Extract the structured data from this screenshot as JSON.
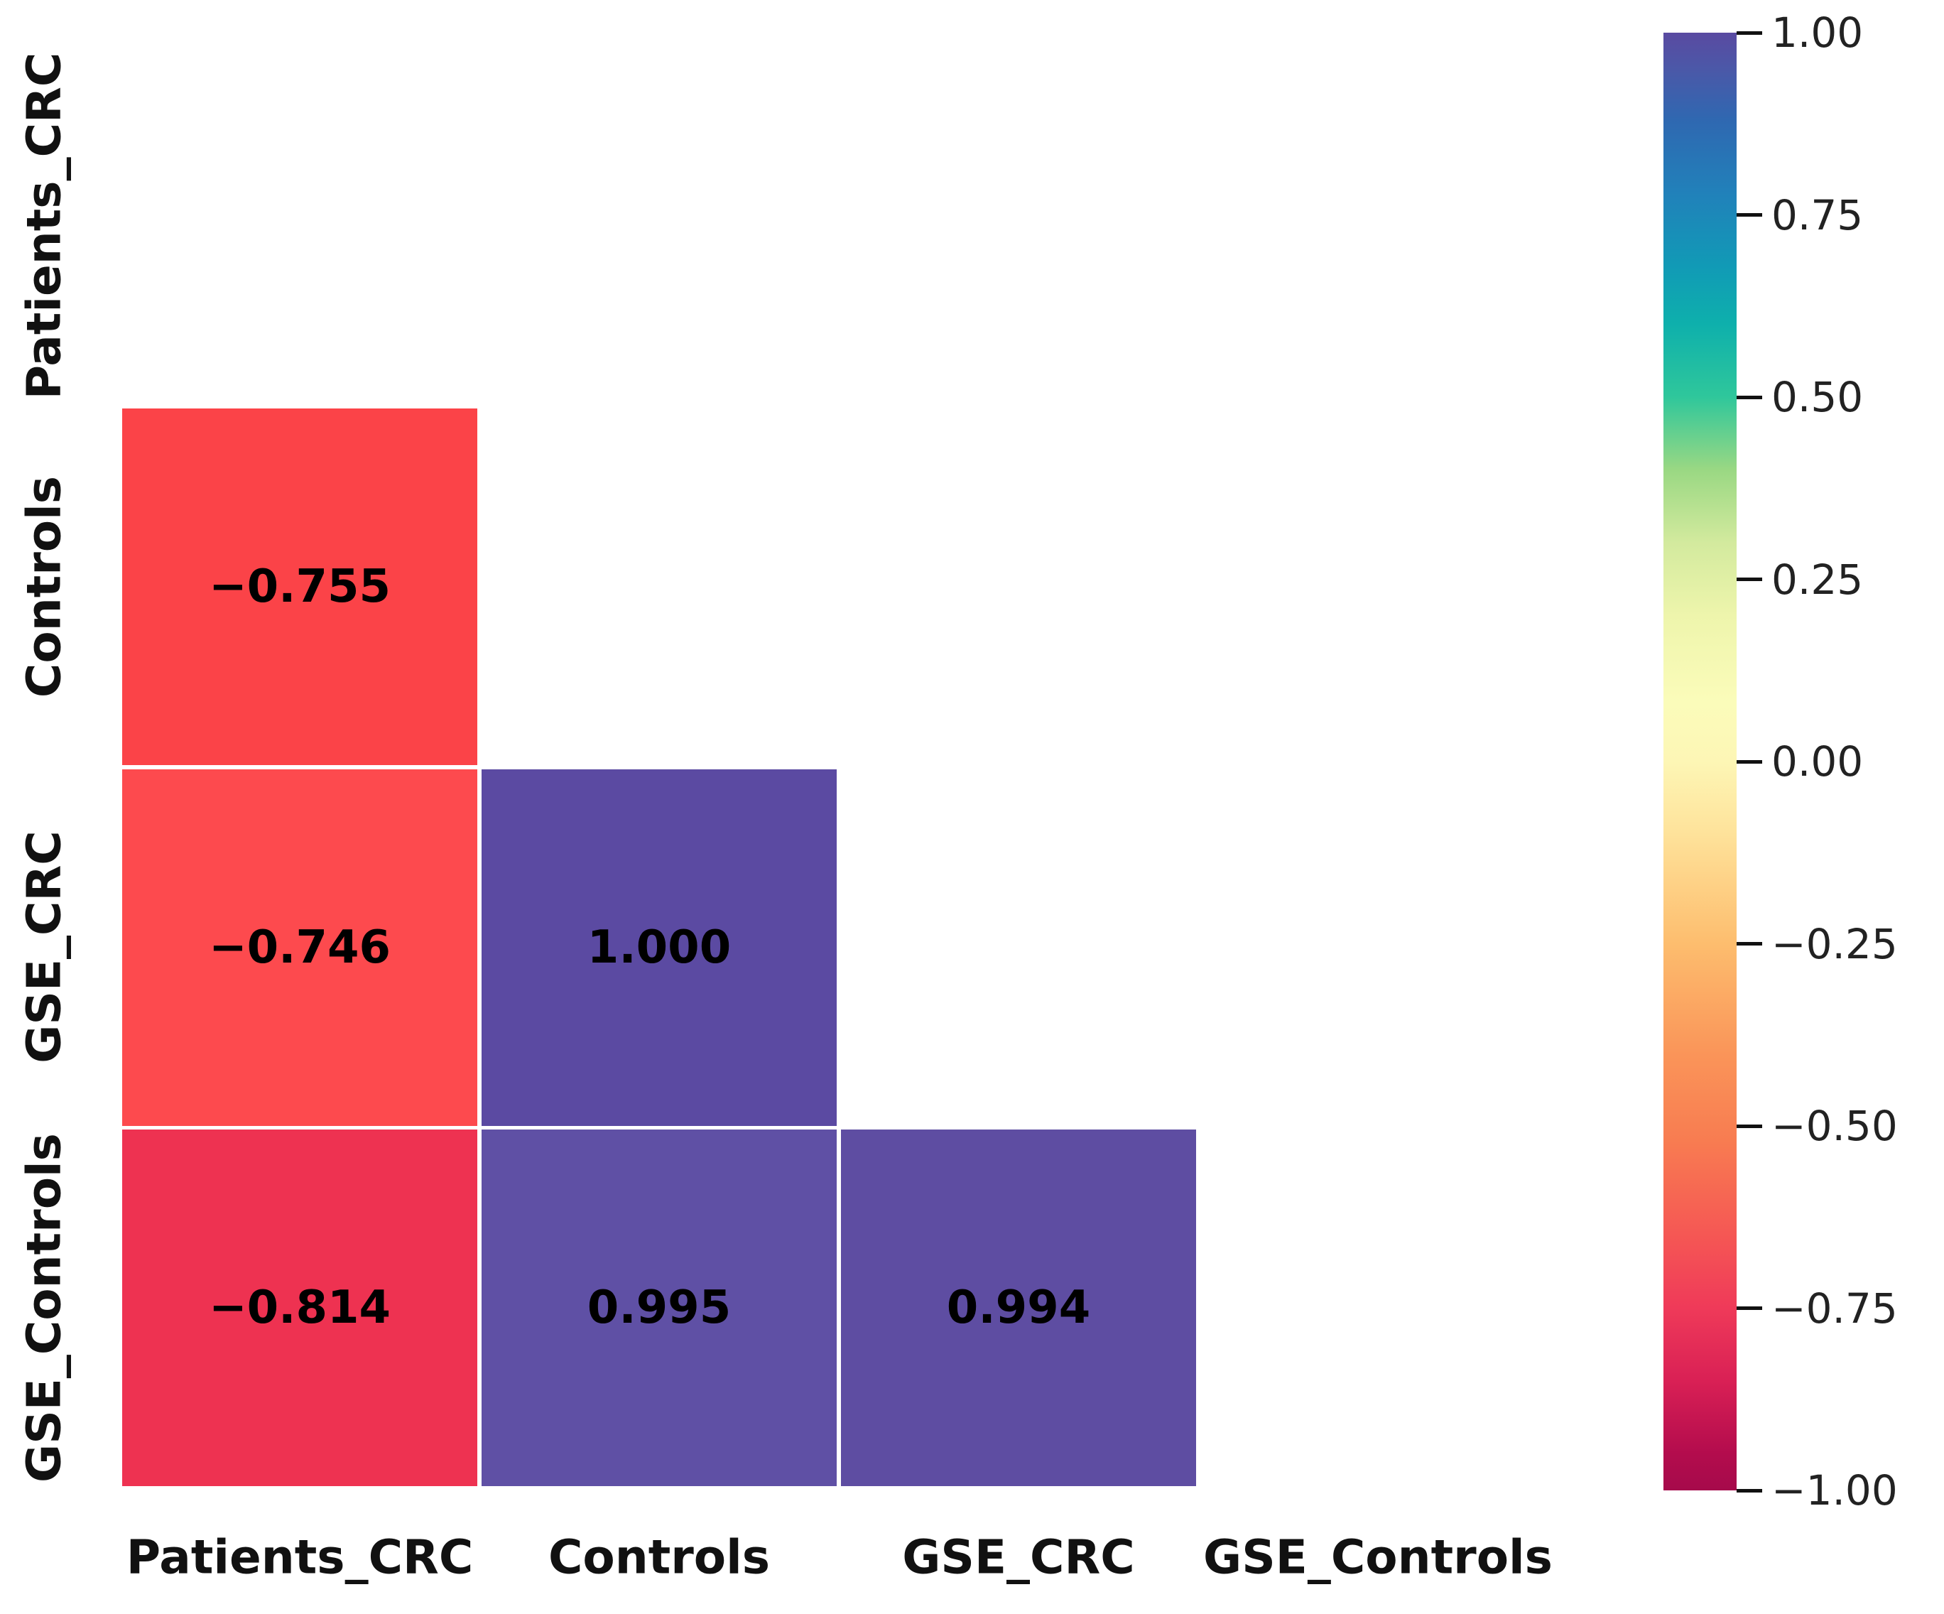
{
  "figure": {
    "background": "#ffffff"
  },
  "heatmap": {
    "row_labels": [
      "Patients_CRC",
      "Controls",
      "GSE_CRC",
      "GSE_Controls"
    ],
    "col_labels": [
      "Patients_CRC",
      "Controls",
      "GSE_CRC",
      "GSE_Controls"
    ],
    "cells": [
      {
        "row": 1,
        "col": 0,
        "value": "−0.755",
        "color": "#fb4348"
      },
      {
        "row": 2,
        "col": 0,
        "value": "−0.746",
        "color": "#fd4a4e"
      },
      {
        "row": 2,
        "col": 1,
        "value": "1.000",
        "color": "#5b4aa2"
      },
      {
        "row": 3,
        "col": 0,
        "value": "−0.814",
        "color": "#ee3251"
      },
      {
        "row": 3,
        "col": 1,
        "value": "0.995",
        "color": "#5f50a5"
      },
      {
        "row": 3,
        "col": 2,
        "value": "0.994",
        "color": "#5e4da2"
      }
    ],
    "value_text_color": "#000000",
    "gap_color": "#ffffff"
  },
  "colorbar": {
    "tick_labels": [
      "1.00",
      "0.75",
      "0.50",
      "0.25",
      "0.00",
      "−0.25",
      "−0.50",
      "−0.75",
      "−1.00"
    ],
    "tick_values": [
      1.0,
      0.75,
      0.5,
      0.25,
      0.0,
      -0.25,
      -0.5,
      -0.75,
      -1.0
    ],
    "gradient_stops": [
      {
        "value": 1.0,
        "color": "#5a4aa1"
      },
      {
        "value": 0.95,
        "color": "#4b58a8"
      },
      {
        "value": 0.88,
        "color": "#2f68b1"
      },
      {
        "value": 0.78,
        "color": "#2181ba"
      },
      {
        "value": 0.68,
        "color": "#119ab6"
      },
      {
        "value": 0.6,
        "color": "#0eb0ac"
      },
      {
        "value": 0.5,
        "color": "#2fc79b"
      },
      {
        "value": 0.4,
        "color": "#9ad883"
      },
      {
        "value": 0.3,
        "color": "#d3ea9e"
      },
      {
        "value": 0.2,
        "color": "#eef5ac"
      },
      {
        "value": 0.08,
        "color": "#fbfcba"
      },
      {
        "value": 0.0,
        "color": "#fdf6b5"
      },
      {
        "value": -0.1,
        "color": "#fee29a"
      },
      {
        "value": -0.25,
        "color": "#fdbd6e"
      },
      {
        "value": -0.4,
        "color": "#fa9559"
      },
      {
        "value": -0.52,
        "color": "#f87c51"
      },
      {
        "value": -0.65,
        "color": "#f55754"
      },
      {
        "value": -0.75,
        "color": "#ef3a59"
      },
      {
        "value": -0.85,
        "color": "#d92055"
      },
      {
        "value": -0.95,
        "color": "#b30c4d"
      },
      {
        "value": -1.0,
        "color": "#a60a4b"
      }
    ]
  },
  "chart_data": {
    "type": "heatmap",
    "title": "",
    "rows": [
      "Patients_CRC",
      "Controls",
      "GSE_CRC",
      "GSE_Controls"
    ],
    "columns": [
      "Patients_CRC",
      "Controls",
      "GSE_CRC",
      "GSE_Controls"
    ],
    "values": [
      [
        null,
        null,
        null,
        null
      ],
      [
        -0.755,
        null,
        null,
        null
      ],
      [
        -0.746,
        1.0,
        null,
        null
      ],
      [
        -0.814,
        0.995,
        0.994,
        null
      ]
    ],
    "mask": "upper triangle and diagonal hidden",
    "colormap": "Spectral",
    "vmin": -1.0,
    "vmax": 1.0,
    "colorbar_ticks": [
      1.0,
      0.75,
      0.5,
      0.25,
      0.0,
      -0.25,
      -0.5,
      -0.75,
      -1.0
    ],
    "legend_position": "vertical colorbar at right",
    "grid": "off",
    "annotations": "correlation values, 3 decimals, bold black, centered in cells"
  }
}
